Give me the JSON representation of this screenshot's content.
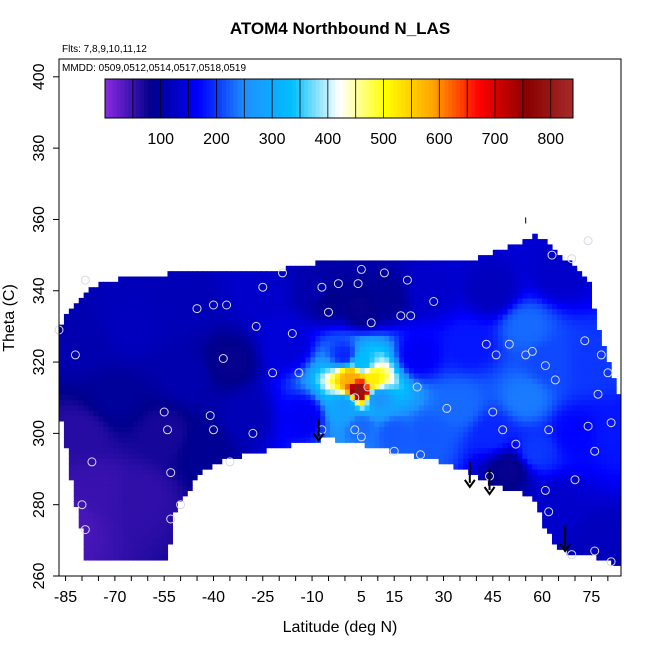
{
  "chart_data": {
    "type": "heatmap",
    "title": "ATOM4 Northbound N_LAS",
    "xlabel": "Latitude (deg N)",
    "ylabel": "Theta (C)",
    "annotations": {
      "flights": "Flts: 7,8,9,10,11,12",
      "dates": "MMDD: 0509,0512,0514,0517,0518,0519"
    },
    "xlim": [
      -87,
      84
    ],
    "ylim": [
      260,
      405
    ],
    "x_ticks": [
      -85,
      -70,
      -55,
      -40,
      -25,
      -10,
      5,
      15,
      30,
      45,
      60,
      75
    ],
    "x_tick_labels": [
      "-85",
      "-70",
      "-55",
      "-40",
      "-25",
      "-10",
      "5",
      "15",
      "30",
      "45",
      "60",
      "75"
    ],
    "y_ticks": [
      260,
      280,
      300,
      320,
      340,
      360,
      380,
      400
    ],
    "y_tick_labels": [
      "260",
      "280",
      "300",
      "320",
      "340",
      "360",
      "380",
      "400"
    ],
    "colorbar": {
      "range": [
        0,
        840
      ],
      "ticks": [
        100,
        200,
        300,
        400,
        500,
        600,
        700,
        800
      ],
      "tick_labels": [
        "100",
        "200",
        "300",
        "400",
        "500",
        "600",
        "700",
        "800"
      ],
      "colors": [
        "#8a2be2",
        "#00008b",
        "#0000ff",
        "#1e90ff",
        "#00bfff",
        "#ffffff",
        "#ffff00",
        "#ffa500",
        "#ff0000",
        "#8b0000",
        "#a52a2a"
      ]
    },
    "domain_top": [
      [
        -87,
        330
      ],
      [
        -82,
        337
      ],
      [
        -77,
        341
      ],
      [
        -72,
        343
      ],
      [
        -62,
        344
      ],
      [
        -52,
        345
      ],
      [
        -42,
        346
      ],
      [
        -32,
        346
      ],
      [
        -20,
        346
      ],
      [
        -13,
        347
      ],
      [
        -8,
        348
      ],
      [
        0,
        348
      ],
      [
        8,
        349
      ],
      [
        15,
        348
      ],
      [
        28,
        348
      ],
      [
        40,
        349
      ],
      [
        46,
        351
      ],
      [
        54,
        354
      ],
      [
        58,
        356
      ],
      [
        62,
        353
      ],
      [
        68,
        348
      ],
      [
        74,
        343
      ],
      [
        77,
        330
      ],
      [
        80,
        320
      ],
      [
        84,
        308
      ]
    ],
    "domain_bottom": [
      [
        84,
        263
      ],
      [
        78,
        265
      ],
      [
        72,
        266
      ],
      [
        68,
        266
      ],
      [
        64,
        269
      ],
      [
        61,
        273
      ],
      [
        58,
        281
      ],
      [
        53,
        284
      ],
      [
        47,
        285
      ],
      [
        42,
        287
      ],
      [
        36,
        290
      ],
      [
        30,
        292
      ],
      [
        25,
        293
      ],
      [
        20,
        294
      ],
      [
        15,
        295
      ],
      [
        10,
        296
      ],
      [
        5,
        297
      ],
      [
        0,
        298
      ],
      [
        -5,
        298.5
      ],
      [
        -10,
        298
      ],
      [
        -20,
        296
      ],
      [
        -30,
        294
      ],
      [
        -38,
        292
      ],
      [
        -44,
        289
      ],
      [
        -49,
        282
      ],
      [
        -52,
        278
      ],
      [
        -54,
        275
      ],
      [
        -54,
        264
      ],
      [
        -79,
        264
      ],
      [
        -80,
        272
      ],
      [
        -82,
        280
      ],
      [
        -84,
        292
      ],
      [
        -86,
        302
      ],
      [
        -87,
        310
      ]
    ],
    "field_nodes": [
      {
        "lat": -84,
        "theta": 275,
        "value": 40
      },
      {
        "lat": -75,
        "theta": 285,
        "value": 50
      },
      {
        "lat": -62,
        "theta": 283,
        "value": 55
      },
      {
        "lat": -80,
        "theta": 300,
        "value": 60
      },
      {
        "lat": -70,
        "theta": 310,
        "value": 95
      },
      {
        "lat": -55,
        "theta": 300,
        "value": 70
      },
      {
        "lat": -42,
        "theta": 296,
        "value": 90
      },
      {
        "lat": -80,
        "theta": 325,
        "value": 110
      },
      {
        "lat": -65,
        "theta": 330,
        "value": 120
      },
      {
        "lat": -48,
        "theta": 316,
        "value": 110
      },
      {
        "lat": -48,
        "theta": 336,
        "value": 115
      },
      {
        "lat": -35,
        "theta": 320,
        "value": 80
      },
      {
        "lat": -30,
        "theta": 305,
        "value": 115
      },
      {
        "lat": -25,
        "theta": 340,
        "value": 130
      },
      {
        "lat": -17,
        "theta": 325,
        "value": 140
      },
      {
        "lat": -12,
        "theta": 305,
        "value": 160
      },
      {
        "lat": -5,
        "theta": 338,
        "value": 85
      },
      {
        "lat": 0,
        "theta": 322,
        "value": 190
      },
      {
        "lat": 5,
        "theta": 335,
        "value": 80
      },
      {
        "lat": 13,
        "theta": 338,
        "value": 90
      },
      {
        "lat": 5,
        "theta": 320,
        "value": 330
      },
      {
        "lat": 0,
        "theta": 308,
        "value": 280
      },
      {
        "lat": 10,
        "theta": 310,
        "value": 260
      },
      {
        "lat": 4.5,
        "theta": 312.5,
        "value": 800
      },
      {
        "lat": 2,
        "theta": 316,
        "value": 580
      },
      {
        "lat": 8,
        "theta": 315,
        "value": 520
      },
      {
        "lat": 5,
        "theta": 302,
        "value": 230
      },
      {
        "lat": 15,
        "theta": 300,
        "value": 220
      },
      {
        "lat": 25,
        "theta": 300,
        "value": 220
      },
      {
        "lat": 22,
        "theta": 322,
        "value": 160
      },
      {
        "lat": 25,
        "theta": 340,
        "value": 130
      },
      {
        "lat": 35,
        "theta": 308,
        "value": 230
      },
      {
        "lat": 38,
        "theta": 325,
        "value": 180
      },
      {
        "lat": 45,
        "theta": 300,
        "value": 190
      },
      {
        "lat": 50,
        "theta": 290,
        "value": 80
      },
      {
        "lat": 55,
        "theta": 310,
        "value": 240
      },
      {
        "lat": 55,
        "theta": 330,
        "value": 230
      },
      {
        "lat": 62,
        "theta": 320,
        "value": 210
      },
      {
        "lat": 65,
        "theta": 345,
        "value": 130
      },
      {
        "lat": 58,
        "theta": 295,
        "value": 200
      },
      {
        "lat": 65,
        "theta": 280,
        "value": 130
      },
      {
        "lat": 70,
        "theta": 300,
        "value": 170
      },
      {
        "lat": 75,
        "theta": 320,
        "value": 200
      },
      {
        "lat": 78,
        "theta": 270,
        "value": 120
      },
      {
        "lat": 82,
        "theta": 300,
        "value": 180
      },
      {
        "lat": 45,
        "theta": 340,
        "value": 120
      },
      {
        "lat": -8,
        "theta": 340,
        "value": 110
      }
    ],
    "observations": [
      [
        -87,
        329
      ],
      [
        -82,
        322
      ],
      [
        -79,
        343
      ],
      [
        -77,
        292
      ],
      [
        -80,
        280
      ],
      [
        -79,
        273
      ],
      [
        -55,
        306
      ],
      [
        -54,
        301
      ],
      [
        -53,
        289
      ],
      [
        -53,
        276
      ],
      [
        -50,
        280
      ],
      [
        -45,
        335
      ],
      [
        -40,
        336
      ],
      [
        -36,
        336
      ],
      [
        -41,
        305
      ],
      [
        -40,
        301
      ],
      [
        -35,
        292
      ],
      [
        -37,
        321
      ],
      [
        -28,
        300
      ],
      [
        -27,
        330
      ],
      [
        -25,
        341
      ],
      [
        -22,
        317
      ],
      [
        -19,
        345
      ],
      [
        -16,
        328
      ],
      [
        -14,
        317
      ],
      [
        -7,
        301
      ],
      [
        -7,
        341
      ],
      [
        -5,
        334
      ],
      [
        -2,
        342
      ],
      [
        3,
        301
      ],
      [
        3,
        310
      ],
      [
        4,
        342
      ],
      [
        5,
        346
      ],
      [
        5,
        299
      ],
      [
        7,
        313
      ],
      [
        8,
        331
      ],
      [
        12,
        345
      ],
      [
        15,
        295
      ],
      [
        17,
        333
      ],
      [
        19,
        343
      ],
      [
        20,
        333
      ],
      [
        22,
        313
      ],
      [
        23,
        294
      ],
      [
        27,
        337
      ],
      [
        31,
        307
      ],
      [
        43,
        325
      ],
      [
        44,
        288
      ],
      [
        45,
        306
      ],
      [
        46,
        322
      ],
      [
        48,
        301
      ],
      [
        50,
        325
      ],
      [
        52,
        297
      ],
      [
        55,
        322
      ],
      [
        57,
        323
      ],
      [
        61,
        319
      ],
      [
        61,
        284
      ],
      [
        62,
        301
      ],
      [
        62,
        278
      ],
      [
        63,
        350
      ],
      [
        64,
        315
      ],
      [
        69,
        349
      ],
      [
        69,
        266
      ],
      [
        70,
        287
      ],
      [
        73,
        326
      ],
      [
        74,
        354
      ],
      [
        74,
        302
      ],
      [
        77,
        311
      ],
      [
        76,
        267
      ],
      [
        76,
        295
      ],
      [
        78,
        322
      ],
      [
        80,
        317
      ],
      [
        81,
        303
      ],
      [
        81,
        264
      ]
    ],
    "arrows": [
      {
        "lat": -8,
        "theta_top": 304,
        "theta_bottom": 298
      },
      {
        "lat": 38,
        "theta_top": 292,
        "theta_bottom": 285
      },
      {
        "lat": 44,
        "theta_top": 290,
        "theta_bottom": 283
      },
      {
        "lat": 67,
        "theta_top": 274,
        "theta_bottom": 267
      }
    ],
    "outlier_marker": {
      "lat": 55,
      "theta": 360
    }
  }
}
